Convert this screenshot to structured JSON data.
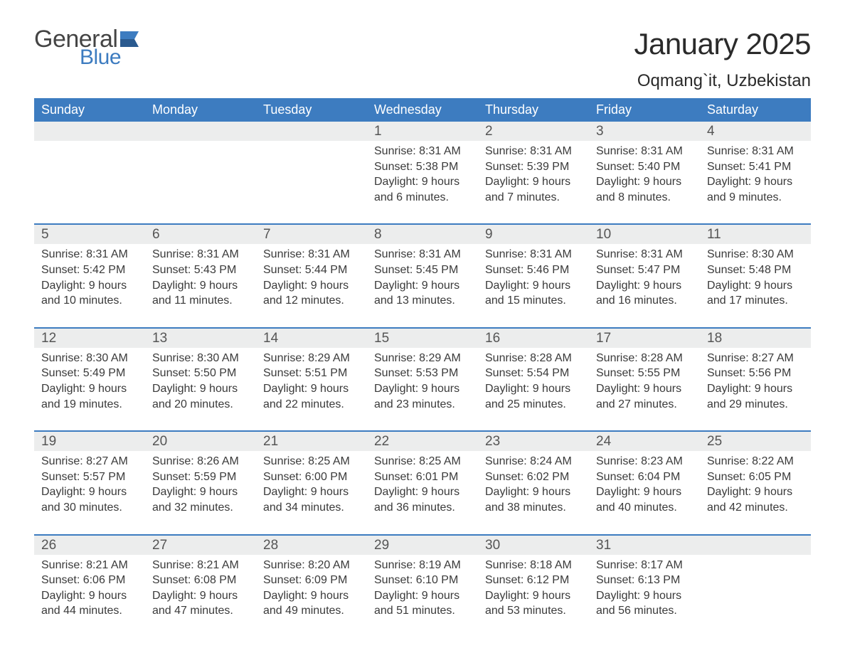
{
  "brand": {
    "word1": "General",
    "word2": "Blue",
    "word1_color": "#444444",
    "word2_color": "#3d7cc0",
    "flag_colors": [
      "#3d7cc0",
      "#2a5a8f"
    ]
  },
  "title": "January 2025",
  "location": "Oqmang`it, Uzbekistan",
  "colors": {
    "header_bg": "#3d7cc0",
    "row_alt_bg": "#eceded",
    "border": "#3d7cc0",
    "text": "#3a3a3a",
    "background": "#ffffff"
  },
  "font": {
    "family": "Arial",
    "title_size_pt": 32,
    "location_size_pt": 18,
    "weekday_size_pt": 14,
    "daynum_size_pt": 14,
    "body_size_pt": 12
  },
  "weekdays": [
    "Sunday",
    "Monday",
    "Tuesday",
    "Wednesday",
    "Thursday",
    "Friday",
    "Saturday"
  ],
  "layout": {
    "columns": 7,
    "weeks": 5,
    "first_day_column": 3
  },
  "days": [
    {
      "n": 1,
      "sunrise": "8:31 AM",
      "sunset": "5:38 PM",
      "daylight": "9 hours and 6 minutes."
    },
    {
      "n": 2,
      "sunrise": "8:31 AM",
      "sunset": "5:39 PM",
      "daylight": "9 hours and 7 minutes."
    },
    {
      "n": 3,
      "sunrise": "8:31 AM",
      "sunset": "5:40 PM",
      "daylight": "9 hours and 8 minutes."
    },
    {
      "n": 4,
      "sunrise": "8:31 AM",
      "sunset": "5:41 PM",
      "daylight": "9 hours and 9 minutes."
    },
    {
      "n": 5,
      "sunrise": "8:31 AM",
      "sunset": "5:42 PM",
      "daylight": "9 hours and 10 minutes."
    },
    {
      "n": 6,
      "sunrise": "8:31 AM",
      "sunset": "5:43 PM",
      "daylight": "9 hours and 11 minutes."
    },
    {
      "n": 7,
      "sunrise": "8:31 AM",
      "sunset": "5:44 PM",
      "daylight": "9 hours and 12 minutes."
    },
    {
      "n": 8,
      "sunrise": "8:31 AM",
      "sunset": "5:45 PM",
      "daylight": "9 hours and 13 minutes."
    },
    {
      "n": 9,
      "sunrise": "8:31 AM",
      "sunset": "5:46 PM",
      "daylight": "9 hours and 15 minutes."
    },
    {
      "n": 10,
      "sunrise": "8:31 AM",
      "sunset": "5:47 PM",
      "daylight": "9 hours and 16 minutes."
    },
    {
      "n": 11,
      "sunrise": "8:30 AM",
      "sunset": "5:48 PM",
      "daylight": "9 hours and 17 minutes."
    },
    {
      "n": 12,
      "sunrise": "8:30 AM",
      "sunset": "5:49 PM",
      "daylight": "9 hours and 19 minutes."
    },
    {
      "n": 13,
      "sunrise": "8:30 AM",
      "sunset": "5:50 PM",
      "daylight": "9 hours and 20 minutes."
    },
    {
      "n": 14,
      "sunrise": "8:29 AM",
      "sunset": "5:51 PM",
      "daylight": "9 hours and 22 minutes."
    },
    {
      "n": 15,
      "sunrise": "8:29 AM",
      "sunset": "5:53 PM",
      "daylight": "9 hours and 23 minutes."
    },
    {
      "n": 16,
      "sunrise": "8:28 AM",
      "sunset": "5:54 PM",
      "daylight": "9 hours and 25 minutes."
    },
    {
      "n": 17,
      "sunrise": "8:28 AM",
      "sunset": "5:55 PM",
      "daylight": "9 hours and 27 minutes."
    },
    {
      "n": 18,
      "sunrise": "8:27 AM",
      "sunset": "5:56 PM",
      "daylight": "9 hours and 29 minutes."
    },
    {
      "n": 19,
      "sunrise": "8:27 AM",
      "sunset": "5:57 PM",
      "daylight": "9 hours and 30 minutes."
    },
    {
      "n": 20,
      "sunrise": "8:26 AM",
      "sunset": "5:59 PM",
      "daylight": "9 hours and 32 minutes."
    },
    {
      "n": 21,
      "sunrise": "8:25 AM",
      "sunset": "6:00 PM",
      "daylight": "9 hours and 34 minutes."
    },
    {
      "n": 22,
      "sunrise": "8:25 AM",
      "sunset": "6:01 PM",
      "daylight": "9 hours and 36 minutes."
    },
    {
      "n": 23,
      "sunrise": "8:24 AM",
      "sunset": "6:02 PM",
      "daylight": "9 hours and 38 minutes."
    },
    {
      "n": 24,
      "sunrise": "8:23 AM",
      "sunset": "6:04 PM",
      "daylight": "9 hours and 40 minutes."
    },
    {
      "n": 25,
      "sunrise": "8:22 AM",
      "sunset": "6:05 PM",
      "daylight": "9 hours and 42 minutes."
    },
    {
      "n": 26,
      "sunrise": "8:21 AM",
      "sunset": "6:06 PM",
      "daylight": "9 hours and 44 minutes."
    },
    {
      "n": 27,
      "sunrise": "8:21 AM",
      "sunset": "6:08 PM",
      "daylight": "9 hours and 47 minutes."
    },
    {
      "n": 28,
      "sunrise": "8:20 AM",
      "sunset": "6:09 PM",
      "daylight": "9 hours and 49 minutes."
    },
    {
      "n": 29,
      "sunrise": "8:19 AM",
      "sunset": "6:10 PM",
      "daylight": "9 hours and 51 minutes."
    },
    {
      "n": 30,
      "sunrise": "8:18 AM",
      "sunset": "6:12 PM",
      "daylight": "9 hours and 53 minutes."
    },
    {
      "n": 31,
      "sunrise": "8:17 AM",
      "sunset": "6:13 PM",
      "daylight": "9 hours and 56 minutes."
    }
  ],
  "labels": {
    "sunrise_prefix": "Sunrise: ",
    "sunset_prefix": "Sunset: ",
    "daylight_prefix": "Daylight: "
  }
}
